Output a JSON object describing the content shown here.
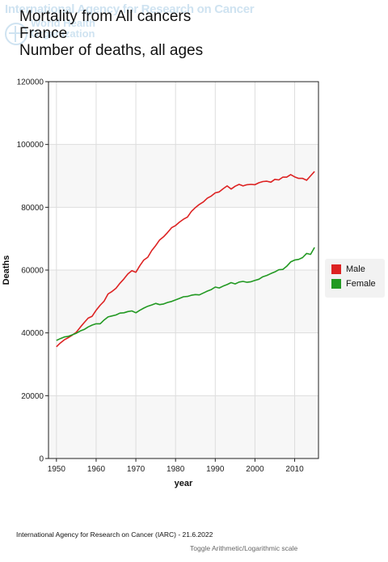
{
  "watermark": {
    "line1": "International Agency for Research on Cancer",
    "org_line1": "World Health",
    "org_line2": "Organization"
  },
  "title": {
    "line1": "Mortality from All cancers",
    "line2": "France",
    "line3": "Number of deaths, all ages"
  },
  "chart_data": {
    "type": "line",
    "xlabel": "year",
    "ylabel": "Deaths",
    "xlim": [
      1948,
      2016
    ],
    "ylim": [
      0,
      120000
    ],
    "x_ticks": [
      1950,
      1960,
      1970,
      1980,
      1990,
      2000,
      2010
    ],
    "y_ticks": [
      0,
      20000,
      40000,
      60000,
      80000,
      100000,
      120000
    ],
    "grid": true,
    "legend_position": "right",
    "x": [
      1950,
      1951,
      1952,
      1953,
      1954,
      1955,
      1956,
      1957,
      1958,
      1959,
      1960,
      1961,
      1962,
      1963,
      1964,
      1965,
      1966,
      1967,
      1968,
      1969,
      1970,
      1971,
      1972,
      1973,
      1974,
      1975,
      1976,
      1977,
      1978,
      1979,
      1980,
      1981,
      1982,
      1983,
      1984,
      1985,
      1986,
      1987,
      1988,
      1989,
      1990,
      1991,
      1992,
      1993,
      1994,
      1995,
      1996,
      1997,
      1998,
      1999,
      2000,
      2001,
      2002,
      2003,
      2004,
      2005,
      2006,
      2007,
      2008,
      2009,
      2010,
      2011,
      2012,
      2013,
      2014,
      2015
    ],
    "series": [
      {
        "name": "Male",
        "color": "#dd2222",
        "values": [
          35600,
          36800,
          37800,
          38500,
          39300,
          40200,
          41800,
          43300,
          44700,
          45300,
          47200,
          48800,
          50100,
          52400,
          53200,
          54200,
          55800,
          57200,
          58800,
          59800,
          59300,
          61400,
          63200,
          64100,
          66200,
          67800,
          69600,
          70600,
          72000,
          73500,
          74200,
          75300,
          76200,
          76900,
          78700,
          79900,
          80900,
          81700,
          82900,
          83600,
          84600,
          84900,
          85900,
          86800,
          85800,
          86700,
          87300,
          86800,
          87200,
          87300,
          87200,
          87800,
          88200,
          88300,
          88000,
          88900,
          88700,
          89600,
          89600,
          90400,
          89700,
          89200,
          89200,
          88600,
          90000,
          91400
        ]
      },
      {
        "name": "Female",
        "color": "#229922",
        "values": [
          37600,
          38200,
          38700,
          38900,
          39400,
          39900,
          40600,
          41100,
          41900,
          42500,
          42900,
          42900,
          44100,
          45100,
          45400,
          45700,
          46300,
          46400,
          46800,
          47000,
          46400,
          47200,
          47900,
          48500,
          48900,
          49400,
          49000,
          49200,
          49700,
          50000,
          50500,
          51000,
          51500,
          51600,
          52000,
          52200,
          52100,
          52700,
          53300,
          53800,
          54600,
          54300,
          54900,
          55400,
          56000,
          55600,
          56200,
          56400,
          56100,
          56300,
          56700,
          57100,
          57900,
          58300,
          58900,
          59400,
          60100,
          60200,
          61200,
          62600,
          63200,
          63400,
          64000,
          65300,
          65000,
          67200
        ]
      }
    ]
  },
  "footer": {
    "source": "International Agency for Research on Cancer (IARC) - 21.6.2022",
    "toggle_label": "Toggle Arithmetic/Logarithmic scale"
  }
}
